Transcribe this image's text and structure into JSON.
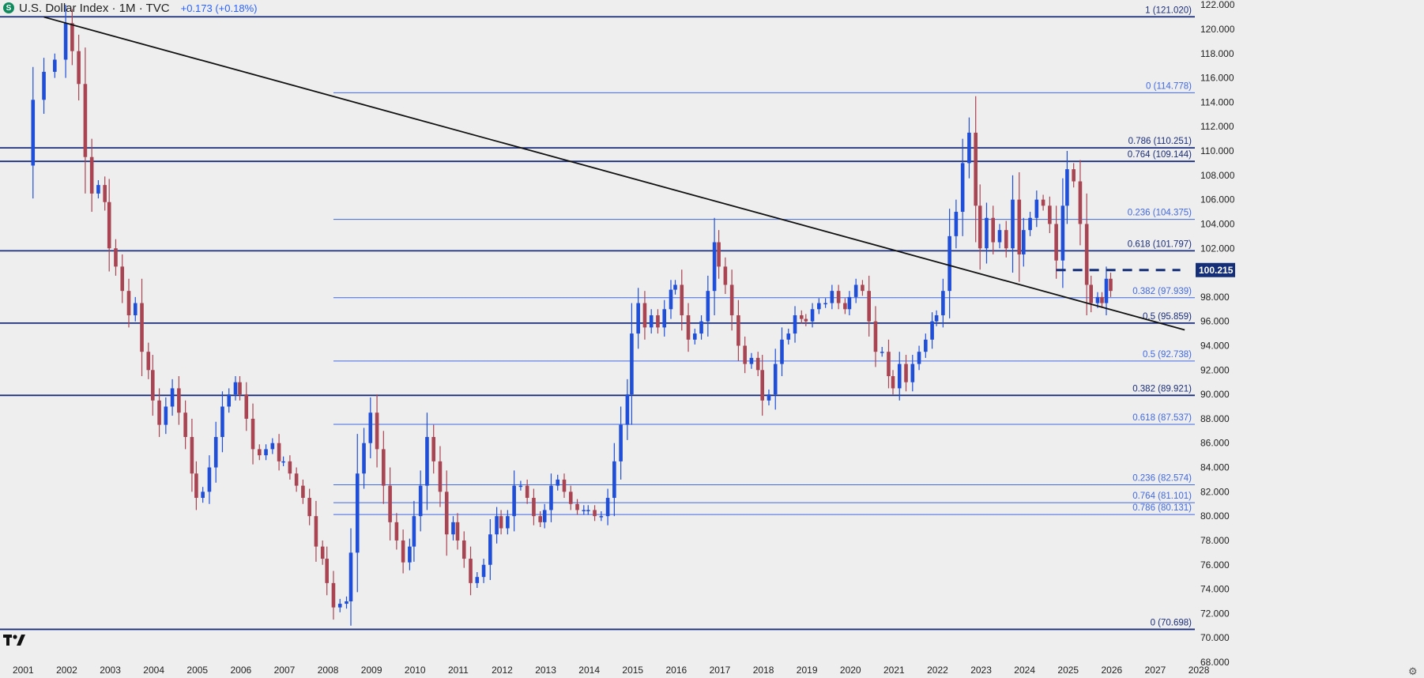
{
  "header": {
    "symbol_icon": "S",
    "title": "U.S. Dollar Index · 1M · TVC",
    "change": "+0.173 (+0.18%)"
  },
  "icons": {
    "logo": "tradingview-logo-icon",
    "settings": "gear-icon"
  },
  "colors": {
    "background": "#eeeeee",
    "up": "#1f4ed8",
    "down": "#a94452",
    "fib_thin": "#4169e1",
    "fib_thick": "#1a2e7a",
    "trendline": "#111111",
    "price_label": "#142f78"
  },
  "chart_data": {
    "type": "candlestick",
    "title": "U.S. Dollar Index · 1M · TVC",
    "interval": "1M",
    "x_ticks": [
      "2001",
      "2002",
      "2003",
      "2004",
      "2005",
      "2006",
      "2007",
      "2008",
      "2009",
      "2010",
      "2011",
      "2012",
      "2013",
      "2014",
      "2015",
      "2016",
      "2017",
      "2018",
      "2019",
      "2020",
      "2021",
      "2022",
      "2023",
      "2024",
      "2025",
      "2026",
      "2027",
      "2028"
    ],
    "y_ticks": [
      "122.000",
      "120.000",
      "118.000",
      "116.000",
      "114.000",
      "112.000",
      "110.000",
      "108.000",
      "106.000",
      "104.000",
      "102.000",
      "100.000",
      "98.000",
      "96.000",
      "94.000",
      "92.000",
      "90.000",
      "88.000",
      "86.000",
      "84.000",
      "82.000",
      "80.000",
      "78.000",
      "76.000",
      "74.000",
      "72.000",
      "70.000",
      "68.000"
    ],
    "ylim": [
      68,
      122.4
    ],
    "xlim": [
      2001.0,
      2028.0
    ],
    "last_price_label": "100.215",
    "last_price": 100.215,
    "closes": [
      [
        2001.0,
        108.8
      ],
      [
        2001.25,
        114.2
      ],
      [
        2001.5,
        116.5
      ],
      [
        2001.75,
        117.5
      ],
      [
        2002.0,
        120.5
      ],
      [
        2002.15,
        118.2
      ],
      [
        2002.3,
        115.5
      ],
      [
        2002.45,
        109.5
      ],
      [
        2002.6,
        106.5
      ],
      [
        2002.75,
        107.2
      ],
      [
        2002.9,
        105.8
      ],
      [
        2003.0,
        102.0
      ],
      [
        2003.15,
        100.5
      ],
      [
        2003.3,
        98.5
      ],
      [
        2003.45,
        96.5
      ],
      [
        2003.6,
        97.5
      ],
      [
        2003.75,
        93.5
      ],
      [
        2003.9,
        92.0
      ],
      [
        2004.0,
        89.5
      ],
      [
        2004.15,
        87.5
      ],
      [
        2004.3,
        89.0
      ],
      [
        2004.45,
        90.5
      ],
      [
        2004.6,
        88.5
      ],
      [
        2004.75,
        86.5
      ],
      [
        2004.9,
        83.5
      ],
      [
        2005.0,
        81.5
      ],
      [
        2005.15,
        82.0
      ],
      [
        2005.3,
        84.0
      ],
      [
        2005.45,
        86.5
      ],
      [
        2005.6,
        89.0
      ],
      [
        2005.75,
        90.0
      ],
      [
        2005.9,
        91.0
      ],
      [
        2006.0,
        90.0
      ],
      [
        2006.15,
        88.0
      ],
      [
        2006.3,
        85.5
      ],
      [
        2006.45,
        85.0
      ],
      [
        2006.6,
        85.5
      ],
      [
        2006.75,
        86.0
      ],
      [
        2006.9,
        84.5
      ],
      [
        2007.0,
        84.5
      ],
      [
        2007.15,
        83.5
      ],
      [
        2007.3,
        82.5
      ],
      [
        2007.45,
        81.5
      ],
      [
        2007.6,
        80.0
      ],
      [
        2007.75,
        77.5
      ],
      [
        2007.9,
        76.5
      ],
      [
        2008.0,
        74.5
      ],
      [
        2008.15,
        72.5
      ],
      [
        2008.3,
        72.8
      ],
      [
        2008.45,
        73.0
      ],
      [
        2008.55,
        77.0
      ],
      [
        2008.7,
        83.5
      ],
      [
        2008.85,
        86.0
      ],
      [
        2009.0,
        88.5
      ],
      [
        2009.15,
        85.5
      ],
      [
        2009.3,
        82.5
      ],
      [
        2009.45,
        79.5
      ],
      [
        2009.6,
        78.0
      ],
      [
        2009.75,
        76.2
      ],
      [
        2009.9,
        77.5
      ],
      [
        2010.0,
        80.0
      ],
      [
        2010.15,
        82.5
      ],
      [
        2010.3,
        86.5
      ],
      [
        2010.45,
        84.5
      ],
      [
        2010.6,
        82.0
      ],
      [
        2010.75,
        78.5
      ],
      [
        2010.9,
        79.5
      ],
      [
        2011.0,
        78.0
      ],
      [
        2011.15,
        76.5
      ],
      [
        2011.3,
        74.5
      ],
      [
        2011.45,
        75.0
      ],
      [
        2011.6,
        76.0
      ],
      [
        2011.75,
        78.5
      ],
      [
        2011.9,
        80.0
      ],
      [
        2012.0,
        79.0
      ],
      [
        2012.15,
        80.0
      ],
      [
        2012.3,
        82.5
      ],
      [
        2012.45,
        82.5
      ],
      [
        2012.6,
        81.5
      ],
      [
        2012.75,
        80.0
      ],
      [
        2012.9,
        79.5
      ],
      [
        2013.0,
        80.5
      ],
      [
        2013.15,
        82.5
      ],
      [
        2013.3,
        83.0
      ],
      [
        2013.45,
        82.0
      ],
      [
        2013.6,
        81.0
      ],
      [
        2013.75,
        80.5
      ],
      [
        2013.9,
        80.5
      ],
      [
        2014.0,
        80.5
      ],
      [
        2014.15,
        80.0
      ],
      [
        2014.3,
        80.0
      ],
      [
        2014.45,
        81.5
      ],
      [
        2014.6,
        84.5
      ],
      [
        2014.75,
        87.5
      ],
      [
        2014.9,
        90.0
      ],
      [
        2015.0,
        95.0
      ],
      [
        2015.15,
        97.5
      ],
      [
        2015.3,
        95.5
      ],
      [
        2015.45,
        96.5
      ],
      [
        2015.6,
        95.5
      ],
      [
        2015.75,
        97.0
      ],
      [
        2015.9,
        98.6
      ],
      [
        2016.0,
        99.0
      ],
      [
        2016.15,
        96.5
      ],
      [
        2016.3,
        94.5
      ],
      [
        2016.45,
        95.0
      ],
      [
        2016.6,
        96.0
      ],
      [
        2016.75,
        98.5
      ],
      [
        2016.9,
        102.5
      ],
      [
        2017.0,
        100.5
      ],
      [
        2017.15,
        99.0
      ],
      [
        2017.3,
        96.5
      ],
      [
        2017.45,
        94.0
      ],
      [
        2017.6,
        92.5
      ],
      [
        2017.75,
        93.0
      ],
      [
        2017.9,
        92.0
      ],
      [
        2018.0,
        89.5
      ],
      [
        2018.15,
        90.0
      ],
      [
        2018.3,
        92.5
      ],
      [
        2018.45,
        94.5
      ],
      [
        2018.6,
        95.0
      ],
      [
        2018.75,
        96.5
      ],
      [
        2018.9,
        96.2
      ],
      [
        2019.0,
        96.0
      ],
      [
        2019.15,
        97.0
      ],
      [
        2019.3,
        97.5
      ],
      [
        2019.45,
        97.5
      ],
      [
        2019.6,
        98.5
      ],
      [
        2019.75,
        97.5
      ],
      [
        2019.9,
        97.0
      ],
      [
        2020.0,
        98.0
      ],
      [
        2020.15,
        99.0
      ],
      [
        2020.3,
        98.5
      ],
      [
        2020.45,
        96.0
      ],
      [
        2020.6,
        93.5
      ],
      [
        2020.75,
        93.5
      ],
      [
        2020.9,
        91.5
      ],
      [
        2021.0,
        90.5
      ],
      [
        2021.15,
        92.5
      ],
      [
        2021.3,
        91.0
      ],
      [
        2021.45,
        92.5
      ],
      [
        2021.6,
        93.5
      ],
      [
        2021.75,
        94.5
      ],
      [
        2021.9,
        96.0
      ],
      [
        2022.0,
        96.5
      ],
      [
        2022.15,
        98.5
      ],
      [
        2022.3,
        103.0
      ],
      [
        2022.45,
        105.0
      ],
      [
        2022.6,
        109.0
      ],
      [
        2022.75,
        111.5
      ],
      [
        2022.9,
        105.5
      ],
      [
        2023.0,
        102.0
      ],
      [
        2023.15,
        104.5
      ],
      [
        2023.3,
        102.5
      ],
      [
        2023.45,
        103.5
      ],
      [
        2023.6,
        102.0
      ],
      [
        2023.75,
        106.0
      ],
      [
        2023.9,
        101.5
      ],
      [
        2024.0,
        103.5
      ],
      [
        2024.15,
        104.5
      ],
      [
        2024.3,
        106.0
      ],
      [
        2024.45,
        105.5
      ],
      [
        2024.6,
        104.0
      ],
      [
        2024.75,
        101.0
      ],
      [
        2024.9,
        105.5
      ],
      [
        2025.0,
        108.5
      ],
      [
        2025.15,
        107.5
      ],
      [
        2025.3,
        104.0
      ],
      [
        2025.45,
        99.0
      ],
      [
        2025.55,
        97.5
      ],
      [
        2025.7,
        98.0
      ],
      [
        2025.8,
        97.5
      ],
      [
        2025.9,
        99.5
      ],
      [
        2026.0,
        98.5
      ]
    ],
    "fib_levels_thin": [
      {
        "label": "0 (114.778)",
        "value": 114.778,
        "x_start": 2008.15
      },
      {
        "label": "0.236 (104.375)",
        "value": 104.375,
        "x_start": 2008.15
      },
      {
        "label": "0.382 (97.939)",
        "value": 97.939,
        "x_start": 2008.15
      },
      {
        "label": "0.5 (92.738)",
        "value": 92.738,
        "x_start": 2008.15
      },
      {
        "label": "0.618 (87.537)",
        "value": 87.537,
        "x_start": 2008.15
      },
      {
        "label": "0.236 (82.574)",
        "value": 82.574,
        "x_start": 2008.15
      },
      {
        "label": "0.764 (81.101)",
        "value": 81.101,
        "x_start": 2008.15
      },
      {
        "label": "0.786 (80.131)",
        "value": 80.131,
        "x_start": 2008.15
      }
    ],
    "fib_levels_thick": [
      {
        "label": "1 (121.020)",
        "value": 121.02
      },
      {
        "label": "0.786 (110.251)",
        "value": 110.251
      },
      {
        "label": "0.764 (109.144)",
        "value": 109.144
      },
      {
        "label": "0.618 (101.797)",
        "value": 101.797
      },
      {
        "label": "0.5 (95.859)",
        "value": 95.859
      },
      {
        "label": "0.382 (89.921)",
        "value": 89.921
      },
      {
        "label": "0 (70.698)",
        "value": 70.698
      }
    ],
    "trendline": {
      "from": [
        2001.5,
        121.0
      ],
      "to": [
        2027.7,
        95.3
      ]
    },
    "dashed_level": {
      "value": 100.215,
      "x_start": 2024.75,
      "x_end": 2027.6
    }
  }
}
